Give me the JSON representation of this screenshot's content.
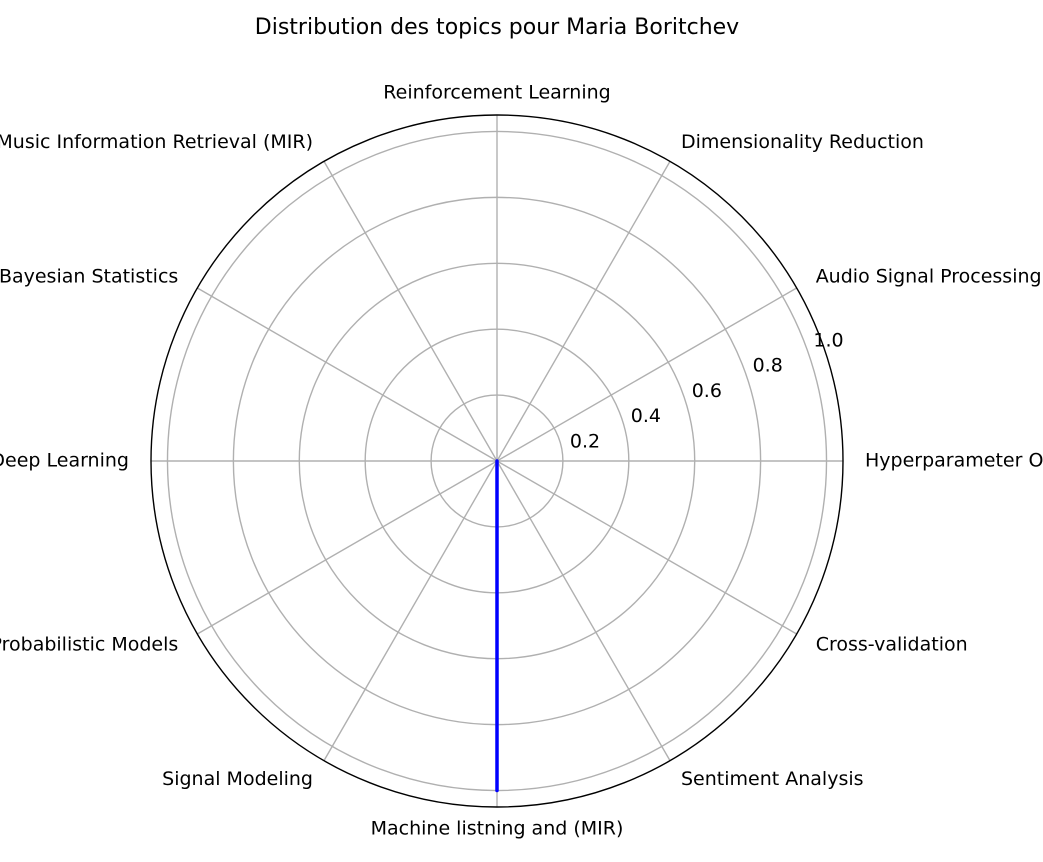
{
  "chart_data": {
    "type": "radar",
    "title": "Distribution des topics pour Maria Boritchev",
    "categories": [
      "Hyperparameter Optimization",
      "Audio Signal Processing",
      "Dimensionality Reduction",
      "Reinforcement Learning",
      "Machine Listening and Music Information Retrieval (MIR)",
      "Bayesian Statistics",
      "Deep Learning",
      "Probabilistic Models",
      "Signal Modeling",
      "Machine listning and (MIR)",
      "Sentiment Analysis",
      "Cross-validation"
    ],
    "series": [
      {
        "values": [
          0,
          0,
          0,
          0,
          0,
          0,
          0,
          0,
          0,
          1.0,
          0,
          0
        ],
        "color": "#0000ff"
      }
    ],
    "rticks": [
      "0.2",
      "0.4",
      "0.6",
      "0.8",
      "1.0"
    ],
    "rtick_values": [
      0.2,
      0.4,
      0.6,
      0.8,
      1.0
    ],
    "rlim": [
      0,
      1.05
    ],
    "grid": true,
    "grid_color": "#b0b0b0",
    "frame_color": "#000000"
  }
}
